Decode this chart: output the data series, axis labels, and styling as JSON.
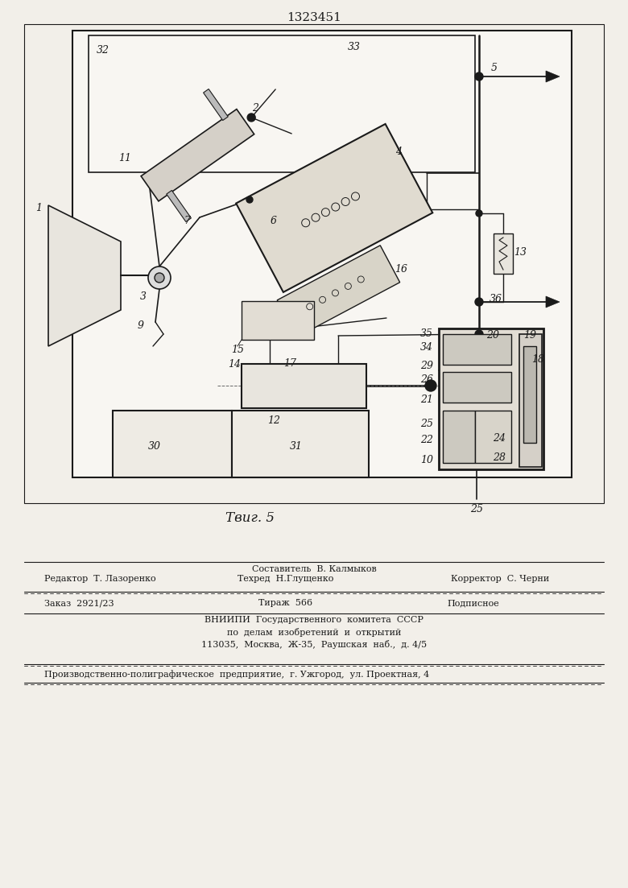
{
  "title": "1323451",
  "fig_label": "Τвиг. 5",
  "background_color": "#f2efe9",
  "line_color": "#1a1a1a",
  "text_color": "#1a1a1a",
  "title_fontsize": 11,
  "body_fontsize": 8,
  "sestavitel": "Составитель  В. Калмыков",
  "redaktor": "Редактор  Т. Лазоренко",
  "tehred": "Техред  Н.Глущенко",
  "korrektor": "Корректор  С. Черни",
  "zakaz": "Заказ  2921/23",
  "tirazh": "Тираж  566",
  "podpisnoe": "Подписное",
  "vniipи1": "ВНИИПИ  Государственного  комитета  СССР",
  "vniipи2": "по  делам  изобретений  и  открытий",
  "vniipи3": "113035,  Москва,  Ж-35,  Раушская  наб.,  д. 4/5",
  "bottom_line": "Производственно-полиграфическое  предприятие,  г. Ужгород,  ул. Проектная, 4"
}
